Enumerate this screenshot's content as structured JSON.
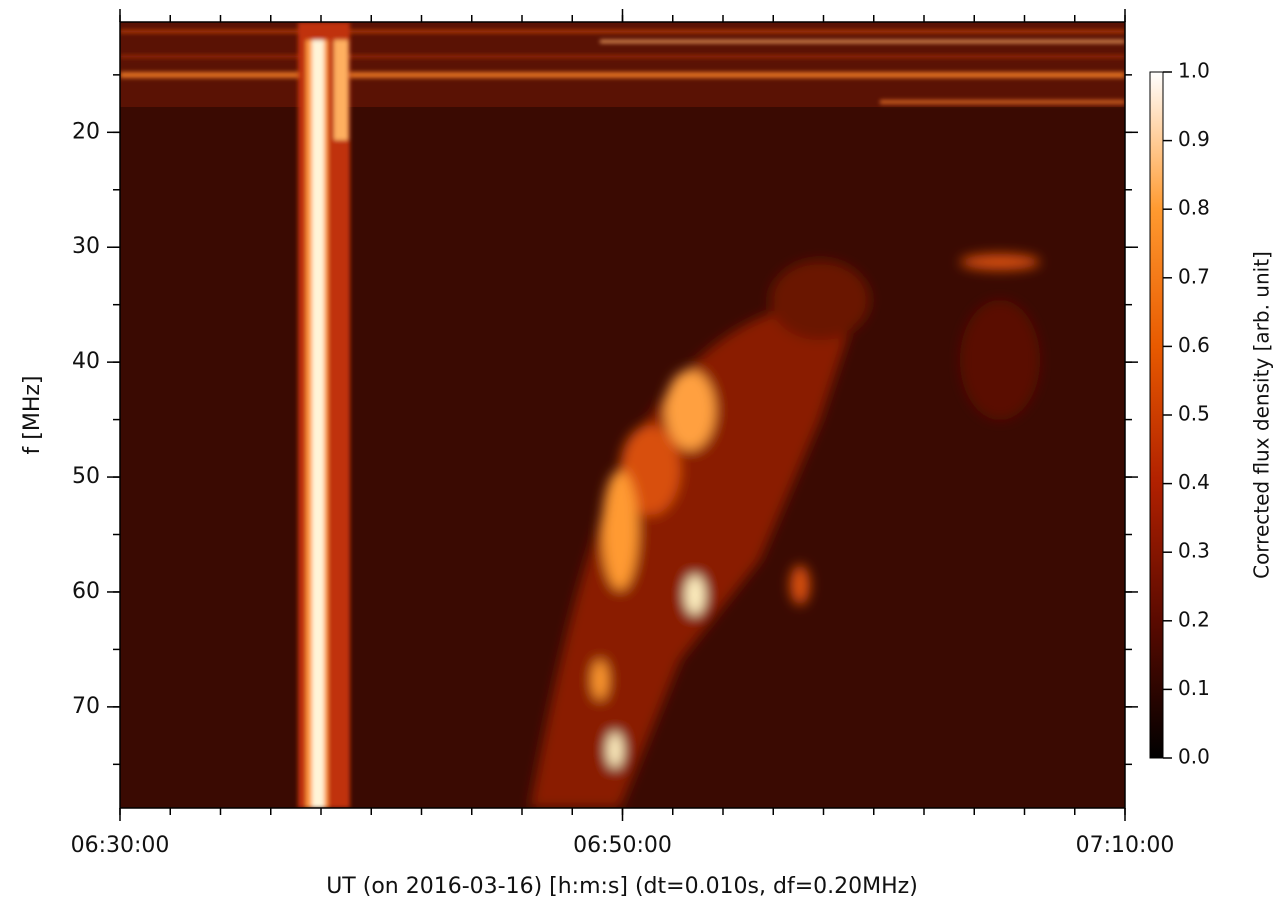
{
  "chart_data": {
    "type": "spectrogram",
    "xlabel": "UT (on 2016-03-16) [h:m:s]   (dt=0.010s, df=0.20MHz)",
    "ylabel": "f [MHz]",
    "xlim": [
      "06:30:00",
      "07:10:00"
    ],
    "xticks": [
      "06:30:00",
      "06:50:00",
      "07:10:00"
    ],
    "ylim": [
      10.4,
      78.8
    ],
    "yticks": [
      20,
      30,
      40,
      50,
      60,
      70
    ],
    "colorbar": {
      "label": "Corrected flux density [arb. unit]",
      "lim": [
        0,
        1
      ],
      "ticks": [
        {
          "value": 0,
          "label": "0.0"
        },
        0.1,
        0.2,
        0.3,
        0.4,
        0.5,
        0.6,
        0.7,
        0.8,
        0.9,
        {
          "value": 1,
          "label": "1.0"
        }
      ],
      "colormap": [
        "#000000",
        "#5a0a00",
        "#b02000",
        "#e85a00",
        "#ff9a30",
        "#ffffff"
      ]
    }
  }
}
